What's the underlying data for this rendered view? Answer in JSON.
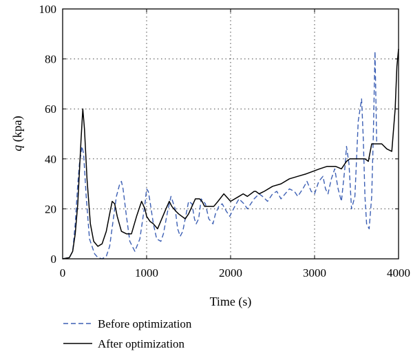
{
  "chart_data": {
    "type": "line",
    "xlabel": "Time (s)",
    "ylabel_var": "q",
    "ylabel_unit": " (kpa)",
    "xlim": [
      0,
      4000
    ],
    "ylim": [
      0,
      100
    ],
    "xticks": [
      0,
      1000,
      2000,
      3000,
      4000
    ],
    "yticks": [
      0,
      20,
      40,
      60,
      80,
      100
    ],
    "grid": true,
    "legend_position": "below",
    "series": [
      {
        "name": "Before optimization",
        "color": "#3c5fb4",
        "style": "dashed",
        "x": [
          0,
          80,
          120,
          150,
          180,
          200,
          230,
          250,
          280,
          320,
          380,
          420,
          470,
          520,
          560,
          600,
          640,
          680,
          700,
          720,
          760,
          800,
          860,
          920,
          980,
          1000,
          1020,
          1040,
          1080,
          1120,
          1170,
          1200,
          1250,
          1290,
          1340,
          1370,
          1400,
          1430,
          1460,
          1500,
          1540,
          1570,
          1590,
          1620,
          1650,
          1700,
          1740,
          1790,
          1820,
          1860,
          1900,
          1950,
          1990,
          2020,
          2050,
          2100,
          2160,
          2200,
          2240,
          2280,
          2340,
          2380,
          2440,
          2500,
          2550,
          2600,
          2650,
          2700,
          2760,
          2800,
          2860,
          2910,
          2960,
          3000,
          3050,
          3100,
          3130,
          3160,
          3200,
          3240,
          3280,
          3320,
          3360,
          3380,
          3410,
          3440,
          3480,
          3520,
          3560,
          3580,
          3600,
          3620,
          3650,
          3680,
          3700,
          3720,
          3740
        ],
        "y": [
          0,
          0.5,
          3,
          14,
          30,
          38,
          45,
          42,
          25,
          8,
          2,
          0.5,
          0,
          1,
          5,
          15,
          25,
          30,
          31,
          28,
          17,
          7,
          3,
          8,
          22,
          28,
          27,
          23,
          14,
          8,
          7,
          10,
          19,
          25,
          20,
          12,
          9,
          11,
          16,
          23,
          22,
          16,
          14,
          16,
          24,
          22,
          16,
          14,
          18,
          21,
          22,
          19,
          17,
          19,
          21,
          24,
          22,
          20,
          22,
          24,
          26,
          25,
          23,
          26,
          27,
          24,
          26,
          28,
          27,
          25,
          28,
          31,
          27,
          26,
          31,
          33,
          28,
          26,
          32,
          36,
          28,
          23,
          36,
          45,
          38,
          20,
          25,
          55,
          64,
          48,
          25,
          14,
          12,
          25,
          50,
          83,
          46
        ]
      },
      {
        "name": "After optimization",
        "color": "#000000",
        "style": "solid",
        "x": [
          0,
          80,
          120,
          150,
          180,
          200,
          220,
          240,
          260,
          290,
          330,
          370,
          420,
          470,
          520,
          560,
          590,
          620,
          650,
          700,
          760,
          820,
          880,
          940,
          980,
          1000,
          1040,
          1080,
          1130,
          1180,
          1230,
          1270,
          1300,
          1350,
          1380,
          1420,
          1460,
          1500,
          1540,
          1580,
          1630,
          1660,
          1690,
          1720,
          1760,
          1800,
          1850,
          1920,
          2000,
          2100,
          2150,
          2200,
          2280,
          2300,
          2340,
          2400,
          2500,
          2600,
          2700,
          2800,
          2900,
          2980,
          3060,
          3150,
          3250,
          3320,
          3340,
          3380,
          3420,
          3500,
          3560,
          3600,
          3640,
          3680,
          3720,
          3760,
          3800,
          3860,
          3920,
          3960,
          3980,
          4000
        ],
        "y": [
          0,
          0.5,
          3,
          10,
          22,
          35,
          48,
          60,
          52,
          32,
          14,
          7,
          5,
          6,
          11,
          18,
          23,
          22,
          17,
          11,
          10,
          10,
          17,
          23,
          20,
          17,
          15,
          14,
          12,
          16,
          20,
          23,
          21,
          19,
          18,
          17,
          16,
          18,
          21,
          24,
          24,
          23,
          21,
          21,
          21,
          21,
          23,
          26,
          23,
          25,
          26,
          25,
          27,
          27,
          26,
          27,
          29,
          30,
          32,
          33,
          34,
          35,
          36,
          37,
          37,
          36,
          37,
          39,
          40,
          40,
          40,
          40,
          39,
          46,
          46,
          46,
          46,
          44,
          43,
          60,
          77,
          84
        ]
      }
    ]
  }
}
